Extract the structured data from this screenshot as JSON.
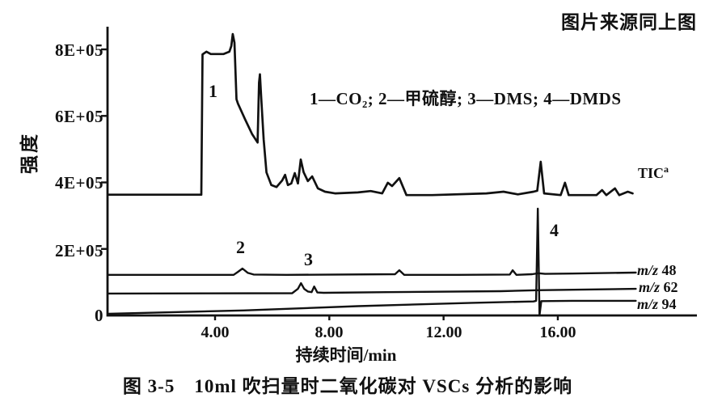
{
  "figure": {
    "source_note": "图片来源同上图",
    "caption": "图 3-5　10ml 吹扫量时二氧化碳对 VSCs 分析的影响"
  },
  "chart_data": {
    "type": "line",
    "title": "图 3-5 10ml 吹扫量时二氧化碳对 VSCs 分析的影响",
    "xlabel": "持续时间/min",
    "ylabel": "强度",
    "legend_note": "1—CO₂; 2—甲硫醇; 3—DMS; 4—DMDS",
    "legend_position": "inside-top-center",
    "grid": false,
    "xlim": [
      0.3,
      20.8
    ],
    "ylim": [
      0,
      870000
    ],
    "x_ticks": [
      "4.00",
      "8.00",
      "12.00",
      "16.00"
    ],
    "x_tick_values": [
      4,
      8,
      12,
      16
    ],
    "y_ticks": [
      "8E+05",
      "6E+05",
      "4E+05",
      "2E+05",
      "0"
    ],
    "y_tick_values": [
      800000,
      600000,
      400000,
      200000,
      0
    ],
    "peaks": [
      {
        "label": "1",
        "compound": "CO₂",
        "time_min": 4.1
      },
      {
        "label": "2",
        "compound": "甲硫醇",
        "time_min": 5.0
      },
      {
        "label": "3",
        "compound": "DMS",
        "time_min": 7.0
      },
      {
        "label": "4",
        "compound": "DMDS",
        "time_min": 15.3
      }
    ],
    "trace_labels": [
      {
        "text": "TIC",
        "sup": "a"
      },
      {
        "prefix": "m/z",
        "value": "48"
      },
      {
        "prefix": "m/z",
        "value": "62"
      },
      {
        "prefix": "m/z",
        "value": "94"
      }
    ],
    "series": [
      {
        "name": "TIC",
        "points": [
          [
            0.26,
            363000
          ],
          [
            3.45,
            363000
          ],
          [
            3.52,
            363000
          ],
          [
            3.56,
            785000
          ],
          [
            3.7,
            793000
          ],
          [
            3.85,
            786000
          ],
          [
            4.3,
            786000
          ],
          [
            4.5,
            793000
          ],
          [
            4.57,
            810000
          ],
          [
            4.62,
            846000
          ],
          [
            4.68,
            820000
          ],
          [
            4.75,
            650000
          ],
          [
            4.8,
            637000
          ],
          [
            5.05,
            590000
          ],
          [
            5.3,
            545000
          ],
          [
            5.49,
            520000
          ],
          [
            5.54,
            700000
          ],
          [
            5.57,
            725000
          ],
          [
            5.62,
            650000
          ],
          [
            5.7,
            530000
          ],
          [
            5.8,
            430000
          ],
          [
            5.97,
            392000
          ],
          [
            6.15,
            386000
          ],
          [
            6.35,
            406000
          ],
          [
            6.45,
            423000
          ],
          [
            6.55,
            392000
          ],
          [
            6.67,
            397000
          ],
          [
            6.79,
            428000
          ],
          [
            6.9,
            397000
          ],
          [
            7.0,
            469000
          ],
          [
            7.1,
            431000
          ],
          [
            7.25,
            404000
          ],
          [
            7.4,
            418000
          ],
          [
            7.6,
            382000
          ],
          [
            7.85,
            372000
          ],
          [
            8.2,
            367000
          ],
          [
            9.0,
            370000
          ],
          [
            9.45,
            374000
          ],
          [
            9.85,
            367000
          ],
          [
            10.05,
            399000
          ],
          [
            10.2,
            389000
          ],
          [
            10.45,
            413000
          ],
          [
            10.7,
            362000
          ],
          [
            11.6,
            362000
          ],
          [
            13.5,
            367000
          ],
          [
            14.1,
            372000
          ],
          [
            14.6,
            364000
          ],
          [
            15.15,
            372000
          ],
          [
            15.28,
            375000
          ],
          [
            15.4,
            462000
          ],
          [
            15.52,
            367000
          ],
          [
            16.1,
            362000
          ],
          [
            16.25,
            399000
          ],
          [
            16.38,
            362000
          ],
          [
            17.35,
            362000
          ],
          [
            17.55,
            377000
          ],
          [
            17.7,
            362000
          ],
          [
            18.0,
            382000
          ],
          [
            18.15,
            362000
          ],
          [
            18.45,
            372000
          ],
          [
            18.62,
            367000
          ]
        ]
      },
      {
        "name": "m/z 48",
        "points": [
          [
            0.26,
            122000
          ],
          [
            4.65,
            122000
          ],
          [
            4.8,
            131000
          ],
          [
            4.96,
            141000
          ],
          [
            5.15,
            128000
          ],
          [
            5.35,
            123000
          ],
          [
            6.5,
            122000
          ],
          [
            10.3,
            124000
          ],
          [
            10.45,
            136000
          ],
          [
            10.62,
            122000
          ],
          [
            12.5,
            122000
          ],
          [
            14.32,
            123000
          ],
          [
            14.42,
            136000
          ],
          [
            14.55,
            122000
          ],
          [
            15.1,
            124000
          ],
          [
            15.32,
            127000
          ],
          [
            15.55,
            125000
          ],
          [
            16.5,
            126000
          ],
          [
            18.73,
            129000
          ]
        ]
      },
      {
        "name": "m/z 62",
        "points": [
          [
            0.26,
            66000
          ],
          [
            6.7,
            67000
          ],
          [
            6.9,
            80000
          ],
          [
            7.01,
            97000
          ],
          [
            7.12,
            80000
          ],
          [
            7.25,
            72000
          ],
          [
            7.38,
            70000
          ],
          [
            7.47,
            87000
          ],
          [
            7.58,
            69000
          ],
          [
            7.8,
            68000
          ],
          [
            10.0,
            70000
          ],
          [
            14.0,
            73000
          ],
          [
            15.27,
            76000
          ],
          [
            18.73,
            80000
          ]
        ]
      },
      {
        "name": "m/z 94",
        "points": [
          [
            0.26,
            5000
          ],
          [
            5.0,
            15000
          ],
          [
            9.0,
            28000
          ],
          [
            13.0,
            38000
          ],
          [
            15.15,
            42000
          ],
          [
            15.24,
            44000
          ],
          [
            15.3,
            321000
          ],
          [
            15.36,
            0
          ],
          [
            15.42,
            43000
          ],
          [
            16.5,
            44000
          ],
          [
            18.73,
            44000
          ]
        ]
      }
    ],
    "colors": {
      "trace": "#111111",
      "background": "#ffffff"
    }
  }
}
